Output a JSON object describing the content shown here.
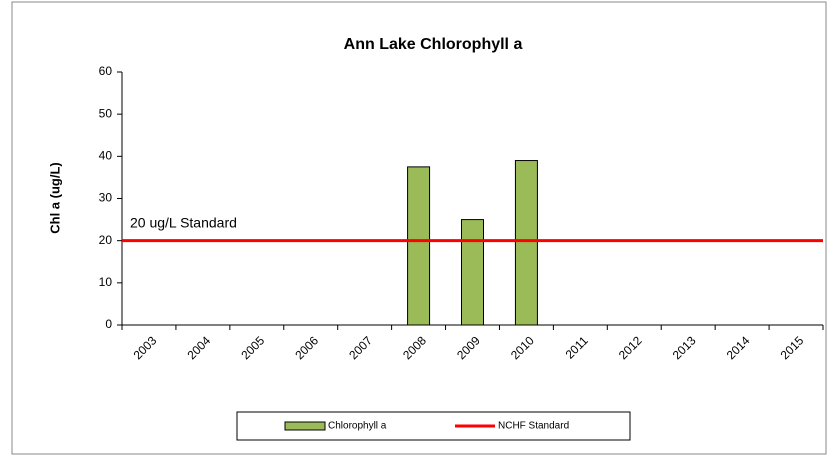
{
  "chart_data": {
    "type": "bar",
    "title": "Ann Lake Chlorophyll a",
    "y_label": "Chl a (ug/L)",
    "categories": [
      "2003",
      "2004",
      "2005",
      "2006",
      "2007",
      "2008",
      "2009",
      "2010",
      "2011",
      "2012",
      "2013",
      "2014",
      "2015"
    ],
    "series": [
      {
        "name": "Chlorophyll a",
        "type": "bar",
        "color": "#9bbb59",
        "values": [
          null,
          null,
          null,
          null,
          null,
          37.5,
          25,
          39,
          null,
          null,
          null,
          null,
          null
        ]
      },
      {
        "name": "NCHF Standard",
        "type": "line",
        "color": "#ff0000",
        "values": [
          20,
          20,
          20,
          20,
          20,
          20,
          20,
          20,
          20,
          20,
          20,
          20,
          20
        ]
      }
    ],
    "annotation": "20 ug/L Standard",
    "ylim": [
      0,
      60
    ],
    "yticks": [
      0,
      10,
      20,
      30,
      40,
      50,
      60
    ],
    "grid": false,
    "legend": "bottom"
  }
}
